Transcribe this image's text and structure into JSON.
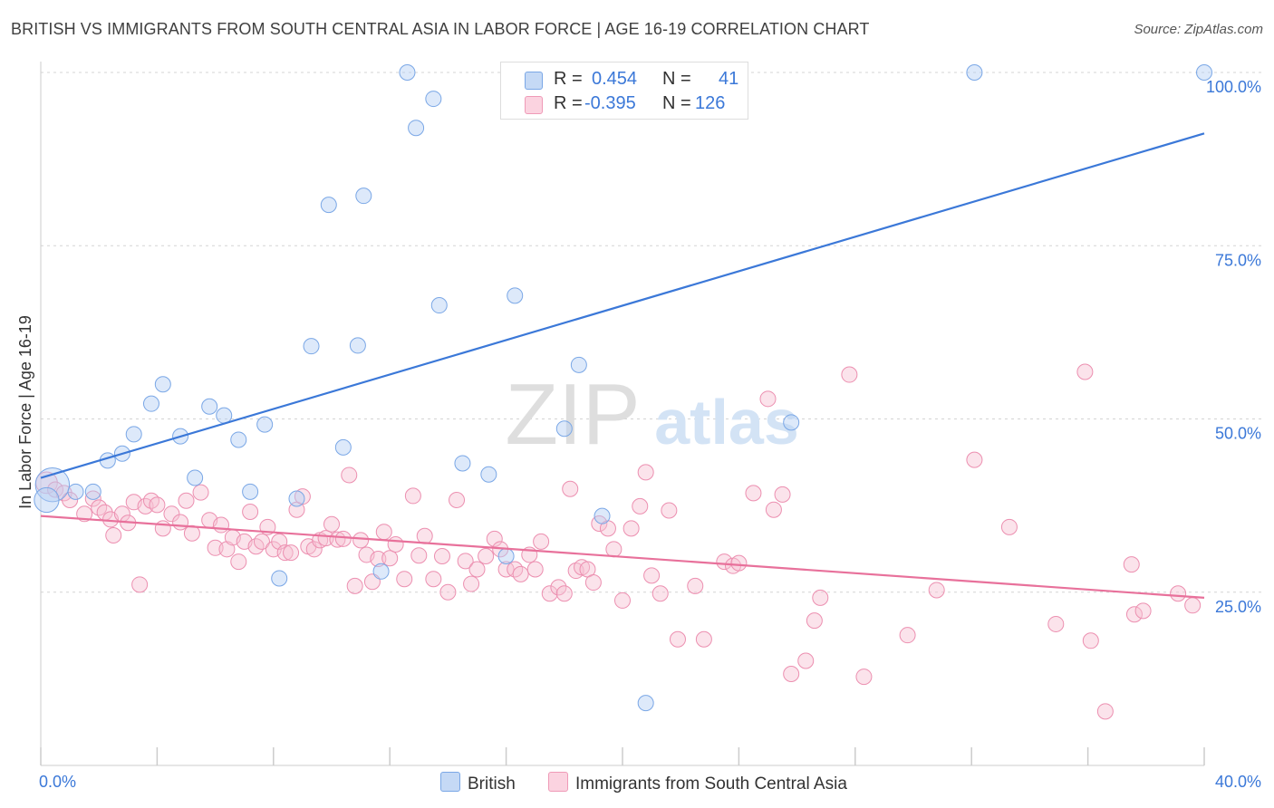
{
  "title": "BRITISH VS IMMIGRANTS FROM SOUTH CENTRAL ASIA IN LABOR FORCE | AGE 16-19 CORRELATION CHART",
  "source": "Source: ZipAtlas.com",
  "watermark": {
    "zip": "ZIP",
    "atlas": "atlas"
  },
  "legend": {
    "r_label": "R =",
    "n_label": "N =",
    "rows": [
      {
        "r": "0.454",
        "n": "41",
        "color": "#a9c8f0"
      },
      {
        "r": "-0.395",
        "n": "126",
        "color": "#f5b8cb"
      }
    ]
  },
  "bottom_legend": [
    {
      "label": "British",
      "color": "#a9c8f0"
    },
    {
      "label": "Immigrants from South Central Asia",
      "color": "#f5b8cb"
    }
  ],
  "colors": {
    "blue": "#3b78d8",
    "pink": "#e8719b",
    "axis_text": "#3b78d8",
    "grid": "#cccccc"
  },
  "chart_data": {
    "type": "scatter",
    "title": "BRITISH VS IMMIGRANTS FROM SOUTH CENTRAL ASIA IN LABOR FORCE | AGE 16-19 CORRELATION CHART",
    "xlabel": "",
    "ylabel": "In Labor Force | Age 16-19",
    "xlim": [
      0,
      40
    ],
    "ylim": [
      0,
      100
    ],
    "x_tick_labels": [
      "0.0%",
      "40.0%"
    ],
    "y_tick_labels": [
      "25.0%",
      "50.0%",
      "75.0%",
      "100.0%"
    ],
    "y_ticks": [
      25,
      50,
      75,
      100
    ],
    "grid": true,
    "legend_position": "top-center",
    "series": [
      {
        "name": "British",
        "color": "#a9c8f0",
        "trend": {
          "x": [
            0,
            40
          ],
          "y": [
            41.5,
            91.2
          ]
        },
        "points": [
          [
            0.4,
            40.5,
            2.2
          ],
          [
            0.2,
            38.3,
            1.6
          ],
          [
            1.2,
            39.5,
            1
          ],
          [
            1.8,
            39.5,
            1
          ],
          [
            2.3,
            44.0,
            1
          ],
          [
            2.8,
            45.0,
            1
          ],
          [
            3.2,
            47.8,
            1
          ],
          [
            3.8,
            52.2,
            1
          ],
          [
            4.2,
            55.0,
            1
          ],
          [
            4.8,
            47.5,
            1
          ],
          [
            5.3,
            41.5,
            1
          ],
          [
            5.8,
            51.8,
            1
          ],
          [
            6.3,
            50.5,
            1
          ],
          [
            6.8,
            47.0,
            1
          ],
          [
            7.2,
            39.5,
            1
          ],
          [
            7.7,
            49.2,
            1
          ],
          [
            8.2,
            27.0,
            1
          ],
          [
            8.8,
            38.5,
            1
          ],
          [
            9.3,
            60.5,
            1
          ],
          [
            9.9,
            80.9,
            1
          ],
          [
            10.4,
            45.9,
            1
          ],
          [
            10.9,
            60.6,
            1
          ],
          [
            11.1,
            82.2,
            1
          ],
          [
            11.7,
            28.0,
            1
          ],
          [
            12.6,
            100.0,
            1
          ],
          [
            12.9,
            92.0,
            1
          ],
          [
            13.5,
            96.2,
            1
          ],
          [
            13.7,
            66.4,
            1
          ],
          [
            14.5,
            43.6,
            1
          ],
          [
            15.4,
            42.0,
            1
          ],
          [
            16.0,
            30.2,
            1
          ],
          [
            16.3,
            67.8,
            1
          ],
          [
            18.0,
            48.6,
            1
          ],
          [
            18.5,
            57.8,
            1
          ],
          [
            19.3,
            36.0,
            1
          ],
          [
            20.8,
            9.0,
            1
          ],
          [
            25.8,
            49.5,
            1
          ],
          [
            32.1,
            100.0,
            1
          ],
          [
            40.0,
            100.0,
            1
          ]
        ]
      },
      {
        "name": "Immigrants from South Central Asia",
        "color": "#f5b8cb",
        "trend": {
          "x": [
            0,
            40
          ],
          "y": [
            36.0,
            24.2
          ]
        },
        "points": [
          [
            0.2,
            40.8,
            1.4
          ],
          [
            0.5,
            39.8,
            1
          ],
          [
            0.8,
            39.3,
            1
          ],
          [
            1.0,
            38.3,
            1
          ],
          [
            1.5,
            36.3,
            1
          ],
          [
            1.8,
            38.5,
            1
          ],
          [
            2.0,
            37.2,
            1
          ],
          [
            2.2,
            36.5,
            1
          ],
          [
            2.4,
            35.5,
            1
          ],
          [
            2.5,
            33.2,
            1
          ],
          [
            2.8,
            36.3,
            1
          ],
          [
            3.0,
            35.0,
            1
          ],
          [
            3.2,
            38.0,
            1
          ],
          [
            3.4,
            26.1,
            1
          ],
          [
            3.6,
            37.4,
            1
          ],
          [
            3.8,
            38.2,
            1
          ],
          [
            4.0,
            37.6,
            1
          ],
          [
            4.2,
            34.2,
            1
          ],
          [
            4.5,
            36.3,
            1
          ],
          [
            4.8,
            35.1,
            1
          ],
          [
            5.0,
            38.2,
            1
          ],
          [
            5.2,
            33.5,
            1
          ],
          [
            5.5,
            39.4,
            1
          ],
          [
            5.8,
            35.4,
            1
          ],
          [
            6.0,
            31.4,
            1
          ],
          [
            6.2,
            34.7,
            1
          ],
          [
            6.4,
            31.2,
            1
          ],
          [
            6.6,
            32.9,
            1
          ],
          [
            6.8,
            29.4,
            1
          ],
          [
            7.0,
            32.3,
            1
          ],
          [
            7.2,
            36.6,
            1
          ],
          [
            7.4,
            31.6,
            1
          ],
          [
            7.6,
            32.3,
            1
          ],
          [
            7.8,
            34.4,
            1
          ],
          [
            8.0,
            31.2,
            1
          ],
          [
            8.2,
            32.3,
            1
          ],
          [
            8.4,
            30.7,
            1
          ],
          [
            8.6,
            30.7,
            1
          ],
          [
            8.8,
            36.9,
            1
          ],
          [
            9.0,
            38.8,
            1
          ],
          [
            9.2,
            31.6,
            1
          ],
          [
            9.4,
            31.2,
            1
          ],
          [
            9.6,
            32.5,
            1
          ],
          [
            9.8,
            32.8,
            1
          ],
          [
            10.0,
            34.8,
            1
          ],
          [
            10.2,
            32.6,
            1
          ],
          [
            10.4,
            32.7,
            1
          ],
          [
            10.6,
            41.9,
            1
          ],
          [
            10.8,
            25.9,
            1
          ],
          [
            11.0,
            32.5,
            1
          ],
          [
            11.2,
            30.4,
            1
          ],
          [
            11.4,
            26.5,
            1
          ],
          [
            11.6,
            29.8,
            1
          ],
          [
            11.8,
            33.7,
            1
          ],
          [
            12.0,
            29.9,
            1
          ],
          [
            12.2,
            31.9,
            1
          ],
          [
            12.5,
            26.9,
            1
          ],
          [
            12.8,
            38.9,
            1
          ],
          [
            13.0,
            30.3,
            1
          ],
          [
            13.2,
            33.1,
            1
          ],
          [
            13.5,
            26.9,
            1
          ],
          [
            13.8,
            30.2,
            1
          ],
          [
            14.0,
            25.0,
            1
          ],
          [
            14.3,
            38.3,
            1
          ],
          [
            14.6,
            29.5,
            1
          ],
          [
            14.8,
            26.2,
            1
          ],
          [
            15.0,
            28.3,
            1
          ],
          [
            15.3,
            30.2,
            1
          ],
          [
            15.6,
            32.7,
            1
          ],
          [
            15.8,
            31.2,
            1
          ],
          [
            16.0,
            28.3,
            1
          ],
          [
            16.3,
            28.3,
            1
          ],
          [
            16.5,
            27.6,
            1
          ],
          [
            16.8,
            30.4,
            1
          ],
          [
            17.0,
            28.3,
            1
          ],
          [
            17.2,
            32.3,
            1
          ],
          [
            17.5,
            24.8,
            1
          ],
          [
            17.8,
            25.7,
            1
          ],
          [
            18.0,
            24.8,
            1
          ],
          [
            18.2,
            39.9,
            1
          ],
          [
            18.4,
            28.1,
            1
          ],
          [
            18.6,
            28.6,
            1
          ],
          [
            18.8,
            28.3,
            1
          ],
          [
            19.0,
            26.4,
            1
          ],
          [
            19.2,
            34.9,
            1
          ],
          [
            19.5,
            34.2,
            1
          ],
          [
            19.7,
            31.2,
            1
          ],
          [
            20.0,
            23.8,
            1
          ],
          [
            20.3,
            34.2,
            1
          ],
          [
            20.6,
            37.4,
            1
          ],
          [
            20.8,
            42.3,
            1
          ],
          [
            21.0,
            27.4,
            1
          ],
          [
            21.3,
            24.8,
            1
          ],
          [
            21.6,
            36.8,
            1
          ],
          [
            21.9,
            18.2,
            1
          ],
          [
            22.5,
            25.9,
            1
          ],
          [
            22.8,
            18.2,
            1
          ],
          [
            23.5,
            29.4,
            1
          ],
          [
            23.8,
            28.8,
            1
          ],
          [
            24.0,
            29.2,
            1
          ],
          [
            24.5,
            39.3,
            1
          ],
          [
            25.0,
            52.9,
            1
          ],
          [
            25.2,
            36.9,
            1
          ],
          [
            25.5,
            39.1,
            1
          ],
          [
            25.8,
            13.2,
            1
          ],
          [
            26.3,
            15.1,
            1
          ],
          [
            26.6,
            20.9,
            1
          ],
          [
            26.8,
            24.2,
            1
          ],
          [
            27.8,
            56.4,
            1
          ],
          [
            28.3,
            12.8,
            1
          ],
          [
            29.8,
            18.8,
            1
          ],
          [
            30.8,
            25.3,
            1
          ],
          [
            32.1,
            44.1,
            1
          ],
          [
            33.3,
            34.4,
            1
          ],
          [
            34.9,
            20.4,
            1
          ],
          [
            35.9,
            56.8,
            1
          ],
          [
            36.1,
            18.0,
            1
          ],
          [
            36.6,
            7.8,
            1
          ],
          [
            37.5,
            29.0,
            1
          ],
          [
            37.6,
            21.8,
            1
          ],
          [
            37.9,
            22.3,
            1
          ],
          [
            39.1,
            24.8,
            1
          ],
          [
            39.6,
            23.1,
            1
          ]
        ]
      }
    ]
  }
}
